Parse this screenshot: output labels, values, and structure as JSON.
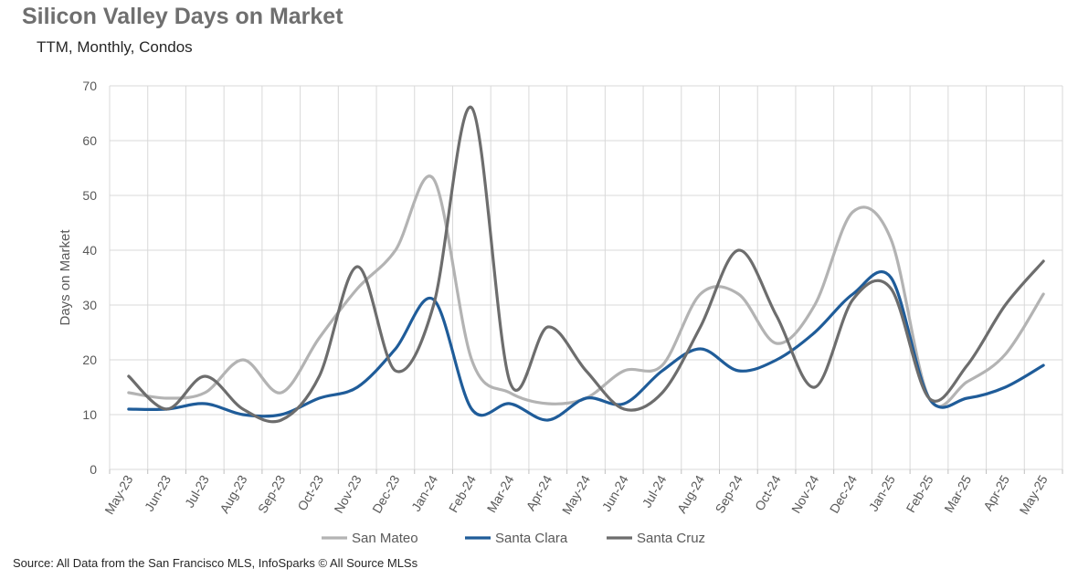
{
  "chart_data": {
    "type": "line",
    "title": "Silicon Valley Days on Market",
    "subtitle": "TTM, Monthly, Condos",
    "xlabel": "",
    "ylabel": "Days on Market",
    "ylim": [
      0,
      70
    ],
    "yticks": [
      0,
      10,
      20,
      30,
      40,
      50,
      60,
      70
    ],
    "grid": true,
    "legend_position": "bottom",
    "categories": [
      "May-23",
      "Jun-23",
      "Jul-23",
      "Aug-23",
      "Sep-23",
      "Oct-23",
      "Nov-23",
      "Dec-23",
      "Jan-24",
      "Feb-24",
      "Mar-24",
      "Apr-24",
      "May-24",
      "Jun-24",
      "Jul-24",
      "Aug-24",
      "Sep-24",
      "Oct-24",
      "Nov-24",
      "Dec-24",
      "Jan-25",
      "Feb-25",
      "Mar-25",
      "Apr-25",
      "May-25"
    ],
    "series": [
      {
        "name": "San Mateo",
        "color": "#b3b3b3",
        "values": [
          14,
          13,
          14,
          20,
          14,
          24,
          33,
          40,
          53,
          20,
          14,
          12,
          13,
          18,
          19,
          32,
          32,
          23,
          30,
          47,
          42,
          13,
          16,
          21,
          32
        ]
      },
      {
        "name": "Santa Clara",
        "color": "#1f5c99",
        "values": [
          11,
          11,
          12,
          10,
          10,
          13,
          15,
          22,
          31,
          11,
          12,
          9,
          13,
          12,
          18,
          22,
          18,
          20,
          25,
          32,
          35,
          13,
          13,
          15,
          19
        ]
      },
      {
        "name": "Santa Cruz",
        "color": "#6d6d6d",
        "values": [
          17,
          11,
          17,
          11,
          9,
          17,
          37,
          18,
          30,
          66,
          16,
          26,
          18,
          11,
          14,
          26,
          40,
          28,
          15,
          31,
          33,
          13,
          19,
          30,
          38
        ]
      }
    ]
  },
  "source": "Source: All Data from the San Francisco MLS, InfoSparks © All Source MLSs"
}
